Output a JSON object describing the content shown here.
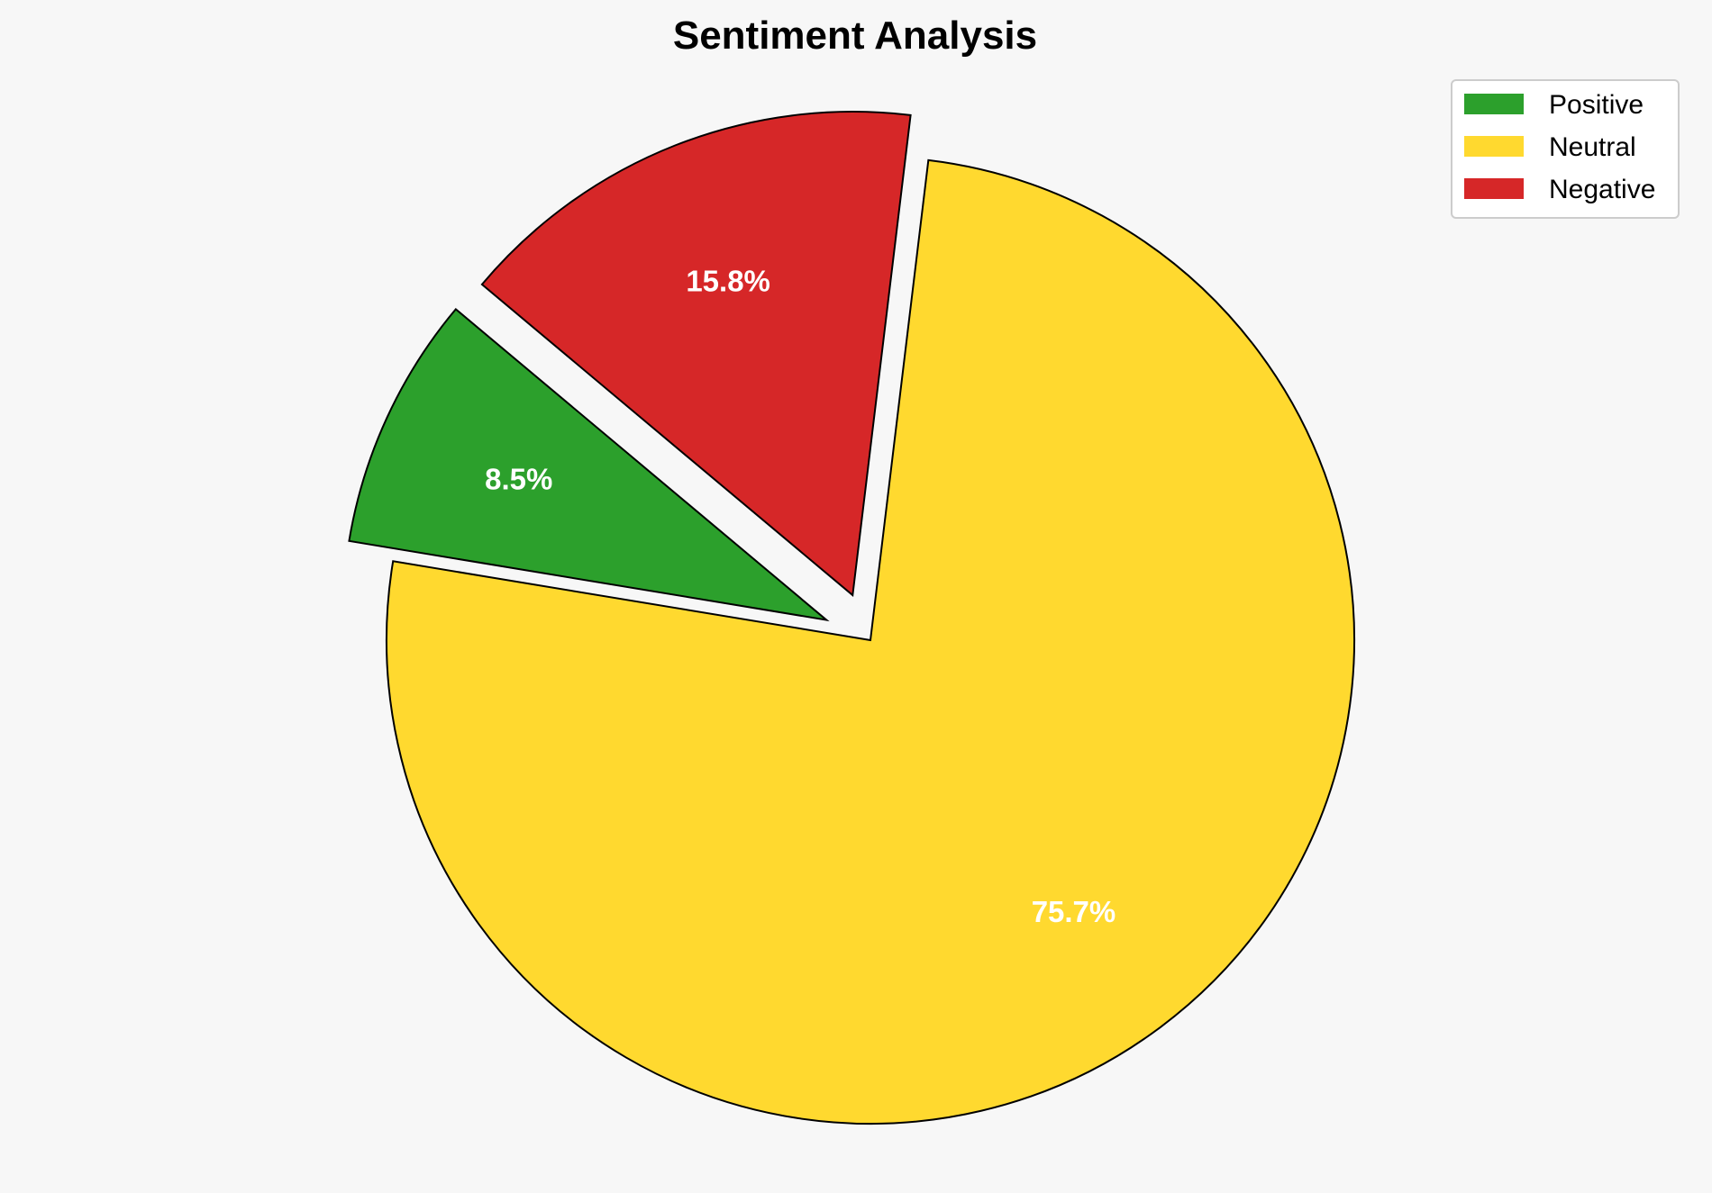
{
  "chart_data": {
    "type": "pie",
    "title": "Sentiment Analysis",
    "categories": [
      "Positive",
      "Neutral",
      "Negative"
    ],
    "values": [
      8.5,
      75.7,
      15.8
    ],
    "labels": [
      "8.5%",
      "75.7%",
      "15.8%"
    ],
    "colors": [
      "#2ca02c",
      "#ffd92f",
      "#d62728"
    ],
    "explode": [
      0.1,
      0,
      0.1
    ],
    "start_angle": 140,
    "direction": "counterclockwise",
    "legend": {
      "position": "top-right",
      "entries": [
        "Positive",
        "Neutral",
        "Negative"
      ]
    },
    "background": "#f7f7f7",
    "edge_color": "#000000"
  }
}
